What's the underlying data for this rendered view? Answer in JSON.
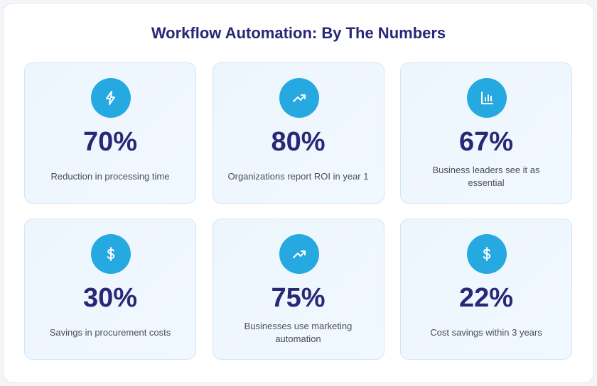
{
  "title": "Workflow Automation: By The Numbers",
  "colors": {
    "accent": "#26a9e1",
    "heading": "#282876"
  },
  "stats": [
    {
      "icon": "lightning-icon",
      "value": "70%",
      "label": "Reduction in processing time"
    },
    {
      "icon": "trending-up-icon",
      "value": "80%",
      "label": "Organizations report ROI in year 1"
    },
    {
      "icon": "bar-chart-icon",
      "value": "67%",
      "label": "Business leaders see it as essential"
    },
    {
      "icon": "dollar-icon",
      "value": "30%",
      "label": "Savings in procurement costs"
    },
    {
      "icon": "trending-up-icon",
      "value": "75%",
      "label": "Businesses use marketing automation"
    },
    {
      "icon": "dollar-icon",
      "value": "22%",
      "label": "Cost savings within 3 years"
    }
  ]
}
